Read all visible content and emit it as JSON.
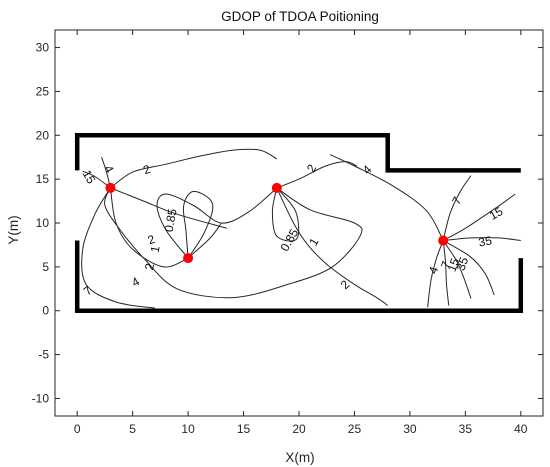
{
  "chart_data": {
    "type": "contour",
    "title": "GDOP of TDOA Poitioning",
    "xlabel": "X(m)",
    "ylabel": "Y(m)",
    "xlim": [
      -2,
      42
    ],
    "ylim": [
      -12,
      32
    ],
    "xticks": [
      0,
      5,
      10,
      15,
      20,
      25,
      30,
      35,
      40
    ],
    "yticks": [
      -10,
      -5,
      0,
      5,
      10,
      15,
      20,
      25,
      30
    ],
    "grid": false,
    "anchors": [
      {
        "x": 3,
        "y": 14
      },
      {
        "x": 18,
        "y": 14
      },
      {
        "x": 10,
        "y": 6
      },
      {
        "x": 33,
        "y": 8
      }
    ],
    "anchor_color": "#ff0000",
    "room_outline": [
      {
        "x": 0,
        "y": 8
      },
      {
        "x": 0,
        "y": 0
      },
      {
        "x": 40,
        "y": 0
      },
      {
        "x": 40,
        "y": 6
      }
    ],
    "room_outline_top": [
      {
        "x": 0,
        "y": 16
      },
      {
        "x": 0,
        "y": 20
      },
      {
        "x": 28,
        "y": 20
      },
      {
        "x": 28,
        "y": 16
      },
      {
        "x": 40,
        "y": 16
      }
    ],
    "contour_labels": [
      {
        "text": "15",
        "x": 1.0,
        "y": 15.2,
        "angle": 60
      },
      {
        "text": "4",
        "x": 2.8,
        "y": 16.1,
        "angle": 60
      },
      {
        "text": "2",
        "x": 6.3,
        "y": 16.0,
        "angle": -20
      },
      {
        "text": "0.85",
        "x": 8.5,
        "y": 10.3,
        "angle": -80
      },
      {
        "text": "1",
        "x": 7.1,
        "y": 7.0,
        "angle": -80
      },
      {
        "text": "2",
        "x": 6.6,
        "y": 5.0,
        "angle": -80
      },
      {
        "text": "2",
        "x": 6.7,
        "y": 8.0,
        "angle": -20
      },
      {
        "text": "4",
        "x": 5.3,
        "y": 3.2,
        "angle": -30
      },
      {
        "text": "7",
        "x": 1.0,
        "y": 2.2,
        "angle": -40
      },
      {
        "text": "2",
        "x": 21.2,
        "y": 16.2,
        "angle": -60
      },
      {
        "text": "0.85",
        "x": 19.2,
        "y": 8.0,
        "angle": -60
      },
      {
        "text": "1",
        "x": 21.4,
        "y": 7.8,
        "angle": -60
      },
      {
        "text": "2",
        "x": 24.2,
        "y": 2.9,
        "angle": -45
      },
      {
        "text": "4",
        "x": 26.2,
        "y": 16.0,
        "angle": -45
      },
      {
        "text": "7",
        "x": 34.3,
        "y": 12.5,
        "angle": -60
      },
      {
        "text": "15",
        "x": 37.8,
        "y": 11.0,
        "angle": -30
      },
      {
        "text": "35",
        "x": 36.8,
        "y": 7.8,
        "angle": -10
      },
      {
        "text": "4",
        "x": 32.2,
        "y": 4.6,
        "angle": -70
      },
      {
        "text": "7",
        "x": 33.3,
        "y": 5.2,
        "angle": -70
      },
      {
        "text": "15",
        "x": 34.0,
        "y": 5.2,
        "angle": -70
      },
      {
        "text": "35",
        "x": 34.8,
        "y": 5.3,
        "angle": -70
      }
    ],
    "contour_lines": [
      {
        "level": 2,
        "points": [
          [
            3,
            14
          ],
          [
            5,
            15.8
          ],
          [
            8,
            16.7
          ],
          [
            11,
            17.6
          ],
          [
            14,
            18.3
          ],
          [
            16.5,
            18.3
          ],
          [
            18,
            17.3
          ]
        ]
      },
      {
        "level": 2,
        "points": [
          [
            3,
            14
          ],
          [
            6,
            12.5
          ],
          [
            9,
            11
          ],
          [
            13.5,
            9.4
          ]
        ]
      },
      {
        "level": 2,
        "points": [
          [
            18,
            14
          ],
          [
            21,
            11.5
          ],
          [
            25,
            10
          ],
          [
            25.5,
            8.5
          ],
          [
            23,
            5
          ],
          [
            19,
            3
          ],
          [
            14,
            1.5
          ],
          [
            9,
            2.5
          ],
          [
            6,
            6
          ],
          [
            4,
            9
          ],
          [
            2.5,
            12
          ],
          [
            3,
            14
          ]
        ]
      },
      {
        "level": 2,
        "points": [
          [
            18,
            14
          ],
          [
            20,
            15
          ],
          [
            22.4,
            16.5
          ],
          [
            24.2,
            17
          ],
          [
            25.2,
            16.5
          ]
        ]
      },
      {
        "level": 2,
        "points": [
          [
            10,
            6
          ],
          [
            7.8,
            5.0
          ],
          [
            5.0,
            7
          ],
          [
            3.5,
            10
          ],
          [
            3,
            14
          ]
        ]
      },
      {
        "level": 2,
        "points": [
          [
            3,
            14
          ],
          [
            1.6,
            11
          ],
          [
            0.5,
            7
          ],
          [
            0.8,
            3
          ],
          [
            3.5,
            1.0
          ],
          [
            7,
            0.3
          ]
        ]
      },
      {
        "level": 1,
        "points": [
          [
            10,
            6
          ],
          [
            8,
            9.2
          ],
          [
            7.2,
            12
          ],
          [
            8,
            13.3
          ],
          [
            10.5,
            12
          ],
          [
            13,
            10
          ],
          [
            15.5,
            11.3
          ],
          [
            18,
            14
          ]
        ]
      },
      {
        "level": 1,
        "points": [
          [
            10,
            6
          ],
          [
            12,
            8.3
          ],
          [
            13,
            10
          ]
        ]
      },
      {
        "level": 1,
        "points": [
          [
            18,
            14
          ],
          [
            19.5,
            10
          ],
          [
            20.8,
            7.5
          ],
          [
            22.5,
            5.3
          ],
          [
            25,
            3
          ],
          [
            27,
            1.5
          ],
          [
            28,
            0.6
          ]
        ]
      },
      {
        "level": 0.85,
        "points": [
          [
            10,
            6
          ],
          [
            11.5,
            9
          ],
          [
            12.2,
            12.2
          ],
          [
            10.5,
            13.6
          ],
          [
            9.6,
            12
          ],
          [
            9.8,
            9.2
          ],
          [
            10,
            6
          ]
        ]
      },
      {
        "level": 0.85,
        "points": [
          [
            18,
            14
          ],
          [
            17.6,
            11.3
          ],
          [
            18,
            8.5
          ],
          [
            19.8,
            8.2
          ],
          [
            19.7,
            11.3
          ],
          [
            18,
            14
          ]
        ]
      },
      {
        "level": 4,
        "points": [
          [
            33,
            8
          ],
          [
            31.5,
            11.4
          ],
          [
            28.5,
            14.2
          ],
          [
            25,
            16.5
          ],
          [
            22.8,
            17.8
          ]
        ]
      },
      {
        "level": 4,
        "points": [
          [
            33,
            8
          ],
          [
            32.4,
            6
          ],
          [
            31.9,
            3.5
          ],
          [
            31.6,
            0.4
          ]
        ]
      },
      {
        "level": 7,
        "points": [
          [
            33,
            8
          ],
          [
            33.6,
            11
          ],
          [
            34.5,
            13.5
          ],
          [
            35.5,
            15.4
          ]
        ]
      },
      {
        "level": 7,
        "points": [
          [
            33,
            8
          ],
          [
            33.2,
            5.7
          ],
          [
            33.3,
            3
          ],
          [
            33.5,
            0.6
          ]
        ]
      },
      {
        "level": 15,
        "points": [
          [
            33,
            8
          ],
          [
            35,
            9.4
          ],
          [
            37.5,
            11.5
          ],
          [
            39.5,
            13.3
          ]
        ]
      },
      {
        "level": 15,
        "points": [
          [
            33,
            8
          ],
          [
            34.2,
            5.7
          ],
          [
            34.9,
            3.6
          ],
          [
            35.5,
            1.4
          ]
        ]
      },
      {
        "level": 35,
        "points": [
          [
            33,
            8
          ],
          [
            35.5,
            8.3
          ],
          [
            38,
            8.3
          ],
          [
            40,
            8.0
          ]
        ]
      },
      {
        "level": 35,
        "points": [
          [
            33,
            8
          ],
          [
            35.4,
            6.2
          ],
          [
            36.8,
            4.2
          ],
          [
            37.6,
            1.8
          ]
        ]
      },
      {
        "level": 15,
        "points": [
          [
            3,
            14
          ],
          [
            1.6,
            15.3
          ],
          [
            0.5,
            15.9
          ]
        ]
      },
      {
        "level": 4,
        "points": [
          [
            3,
            14
          ],
          [
            2.6,
            16
          ],
          [
            2.2,
            17.5
          ]
        ]
      }
    ]
  }
}
